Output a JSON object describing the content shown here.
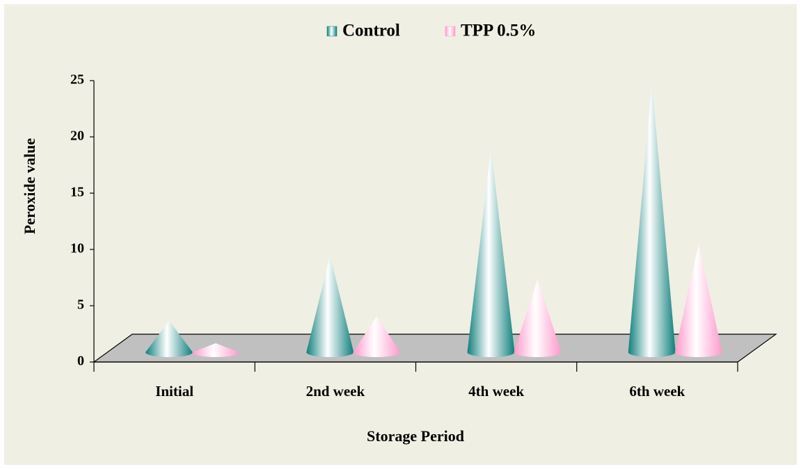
{
  "chart_data": {
    "type": "cone",
    "x_label": "Storage Period",
    "y_label": "Peroxide value",
    "categories": [
      "Initial",
      "2nd week",
      "4th week",
      "6th week"
    ],
    "series": [
      {
        "name": "Control",
        "color": "#0e7f7c",
        "values": [
          2.8,
          8.6,
          18.2,
          24.0
        ]
      },
      {
        "name": "TPP 0.5%",
        "color": "#ff99cc",
        "values": [
          0.8,
          3.2,
          6.5,
          9.6
        ]
      }
    ],
    "ylim": [
      0,
      25
    ],
    "yticks": [
      0,
      5,
      10,
      15,
      20,
      25
    ],
    "legend": "top"
  }
}
